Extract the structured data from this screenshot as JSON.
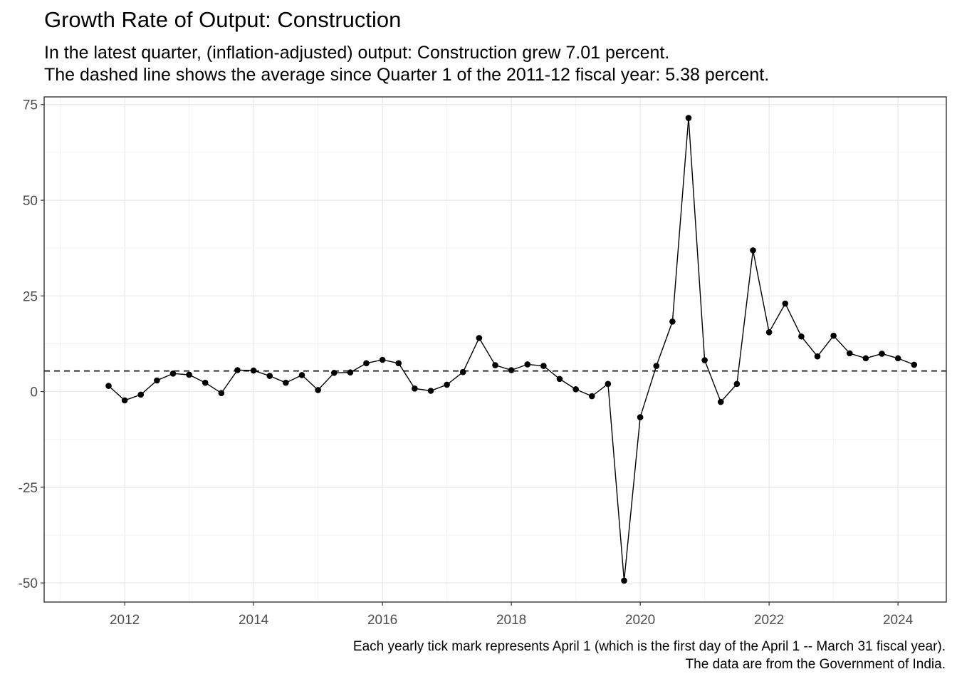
{
  "chart_data": {
    "type": "line",
    "title": "Growth Rate of Output: Construction",
    "subtitle_lines": [
      "In the latest quarter, (inflation-adjusted) output: Construction grew 7.01 percent.",
      "The dashed line shows the average since Quarter 1 of the 2011-12 fiscal year: 5.38 percent."
    ],
    "caption_lines": [
      "Each yearly tick mark represents April 1 (which is the first day of the April 1 -- March 31 fiscal year).",
      "The data are from the Government of India."
    ],
    "xlabel": "",
    "ylabel": "",
    "x_axis": {
      "ticks": [
        "2012",
        "2014",
        "2016",
        "2018",
        "2020",
        "2022",
        "2024"
      ],
      "range": [
        "2011-01",
        "2025-01"
      ]
    },
    "y_axis": {
      "ticks": [
        75,
        50,
        25,
        0,
        -25,
        -50
      ],
      "range": [
        -55,
        77
      ]
    },
    "grid": true,
    "reference_line": {
      "style": "dashed",
      "value": 5.38
    },
    "series": [
      {
        "points": [
          {
            "x": "2012-01",
            "y": 1.5
          },
          {
            "x": "2012-04",
            "y": -2.3
          },
          {
            "x": "2012-07",
            "y": -0.8
          },
          {
            "x": "2012-10",
            "y": 2.9
          },
          {
            "x": "2013-01",
            "y": 4.7
          },
          {
            "x": "2013-04",
            "y": 4.4
          },
          {
            "x": "2013-07",
            "y": 2.3
          },
          {
            "x": "2013-10",
            "y": -0.4
          },
          {
            "x": "2014-01",
            "y": 5.6
          },
          {
            "x": "2014-04",
            "y": 5.5
          },
          {
            "x": "2014-07",
            "y": 4.1
          },
          {
            "x": "2014-10",
            "y": 2.3
          },
          {
            "x": "2015-01",
            "y": 4.3
          },
          {
            "x": "2015-04",
            "y": 0.4
          },
          {
            "x": "2015-07",
            "y": 4.9
          },
          {
            "x": "2015-10",
            "y": 5.0
          },
          {
            "x": "2016-01",
            "y": 7.4
          },
          {
            "x": "2016-04",
            "y": 8.3
          },
          {
            "x": "2016-07",
            "y": 7.4
          },
          {
            "x": "2016-10",
            "y": 0.8
          },
          {
            "x": "2017-01",
            "y": 0.2
          },
          {
            "x": "2017-04",
            "y": 1.8
          },
          {
            "x": "2017-07",
            "y": 5.1
          },
          {
            "x": "2017-10",
            "y": 14.0
          },
          {
            "x": "2018-01",
            "y": 6.9
          },
          {
            "x": "2018-04",
            "y": 5.6
          },
          {
            "x": "2018-07",
            "y": 7.1
          },
          {
            "x": "2018-10",
            "y": 6.7
          },
          {
            "x": "2019-01",
            "y": 3.3
          },
          {
            "x": "2019-04",
            "y": 0.6
          },
          {
            "x": "2019-07",
            "y": -1.2
          },
          {
            "x": "2019-10",
            "y": 2.0
          },
          {
            "x": "2020-01",
            "y": -49.4
          },
          {
            "x": "2020-04",
            "y": -6.7
          },
          {
            "x": "2020-07",
            "y": 6.7
          },
          {
            "x": "2020-10",
            "y": 18.3
          },
          {
            "x": "2021-01",
            "y": 71.5
          },
          {
            "x": "2021-04",
            "y": 8.2
          },
          {
            "x": "2021-07",
            "y": -2.7
          },
          {
            "x": "2021-10",
            "y": 2.0
          },
          {
            "x": "2022-01",
            "y": 36.9
          },
          {
            "x": "2022-04",
            "y": 15.5
          },
          {
            "x": "2022-07",
            "y": 23.0
          },
          {
            "x": "2022-10",
            "y": 14.4
          },
          {
            "x": "2023-01",
            "y": 9.2
          },
          {
            "x": "2023-04",
            "y": 14.6
          },
          {
            "x": "2023-07",
            "y": 10.0
          },
          {
            "x": "2023-10",
            "y": 8.7
          },
          {
            "x": "2024-01",
            "y": 9.9
          },
          {
            "x": "2024-04",
            "y": 8.7
          },
          {
            "x": "2024-07",
            "y": 7.01
          }
        ]
      }
    ]
  }
}
